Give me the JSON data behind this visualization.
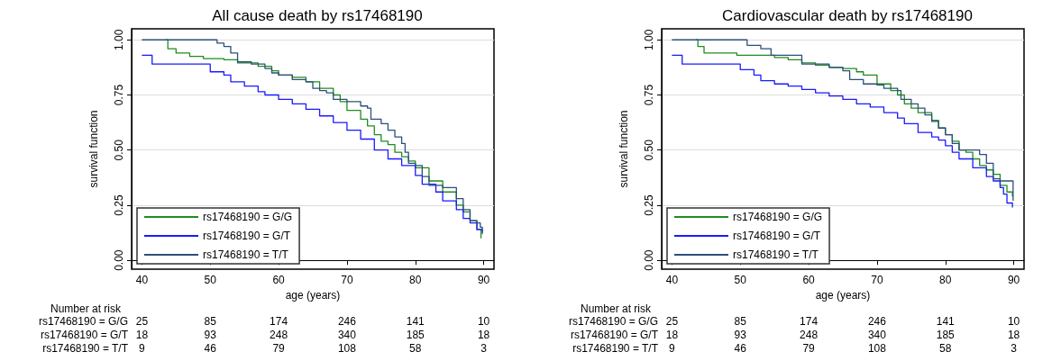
{
  "chart_data": [
    {
      "type": "step",
      "title": "All cause death by rs17468190",
      "xlabel": "age (years)",
      "ylabel": "survival function",
      "xlim": [
        38.5,
        91.5
      ],
      "xticks": [
        40,
        50,
        60,
        70,
        80,
        90
      ],
      "ylim": [
        -0.04,
        1.05
      ],
      "yticks": [
        {
          "value": 0,
          "label": "0.00"
        },
        {
          "value": 0.25,
          "label": "0.25"
        },
        {
          "value": 0.5,
          "label": "0.50"
        },
        {
          "value": 0.75,
          "label": "0.75"
        },
        {
          "value": 1,
          "label": "1.00"
        }
      ],
      "grid": "y",
      "legend": "bottom left",
      "marker": "none",
      "line_style": "solid",
      "series": [
        {
          "name": "rs17468190 = G/G",
          "color": "#1f8c1f",
          "x": [
            43.5,
            43.8,
            45,
            47,
            49,
            52,
            54,
            57,
            59,
            60,
            62,
            64,
            66,
            68,
            69,
            70,
            72,
            73,
            74,
            75,
            76,
            77,
            78,
            79,
            80,
            82,
            84,
            86,
            87,
            88,
            89,
            89.6
          ],
          "values": [
            1.0,
            0.96,
            0.94,
            0.925,
            0.915,
            0.91,
            0.895,
            0.88,
            0.86,
            0.84,
            0.83,
            0.81,
            0.78,
            0.75,
            0.72,
            0.68,
            0.64,
            0.61,
            0.57,
            0.54,
            0.525,
            0.49,
            0.47,
            0.45,
            0.42,
            0.36,
            0.31,
            0.25,
            0.22,
            0.18,
            0.14,
            0.1
          ]
        },
        {
          "name": "rs17468190 = G/T",
          "color": "#1a1aff",
          "x": [
            40,
            41.5,
            49,
            50,
            52,
            53,
            55,
            57,
            58,
            60,
            62,
            64,
            66,
            68,
            70,
            72,
            74,
            76,
            78,
            80,
            81,
            83,
            84,
            86,
            87,
            88,
            89,
            89.8
          ],
          "values": [
            0.93,
            0.89,
            0.89,
            0.855,
            0.84,
            0.81,
            0.79,
            0.765,
            0.75,
            0.73,
            0.71,
            0.685,
            0.655,
            0.625,
            0.59,
            0.55,
            0.5,
            0.46,
            0.43,
            0.385,
            0.345,
            0.31,
            0.27,
            0.23,
            0.19,
            0.17,
            0.14,
            0.12
          ]
        },
        {
          "name": "rs17468190 = T/T",
          "color": "#2b4f7a",
          "x": [
            40,
            50.7,
            51,
            52,
            53,
            54,
            56,
            58,
            59,
            60,
            62,
            64,
            65,
            66,
            67,
            68,
            70,
            72,
            73,
            73.5,
            75,
            76,
            77,
            78,
            78.5,
            79,
            80,
            81,
            82,
            84,
            86,
            87,
            88,
            89,
            89.5,
            89.8
          ],
          "values": [
            1.0,
            1.0,
            0.985,
            0.97,
            0.94,
            0.9,
            0.89,
            0.87,
            0.85,
            0.84,
            0.82,
            0.81,
            0.78,
            0.77,
            0.76,
            0.73,
            0.72,
            0.7,
            0.69,
            0.64,
            0.62,
            0.59,
            0.56,
            0.53,
            0.49,
            0.44,
            0.43,
            0.38,
            0.34,
            0.33,
            0.28,
            0.23,
            0.18,
            0.17,
            0.15,
            0.13
          ]
        }
      ],
      "annotations": [
        "Number at risk",
        "rs17468190 = G/G",
        "25",
        "85",
        "174",
        "246",
        "141",
        "10",
        "rs17468190 = G/T",
        "18",
        "93",
        "248",
        "340",
        "185",
        "18",
        "rs17468190 = T/T",
        "9",
        "46",
        "79",
        "108",
        "58",
        "3"
      ]
    },
    {
      "type": "step",
      "title": "Cardiovascular death by rs17468190",
      "xlabel": "age (years)",
      "ylabel": "survival function",
      "xlim": [
        38.5,
        91.5
      ],
      "xticks": [
        40,
        50,
        60,
        70,
        80,
        90
      ],
      "ylim": [
        -0.04,
        1.05
      ],
      "yticks": [
        {
          "value": 0,
          "label": "0.00"
        },
        {
          "value": 0.25,
          "label": "0.25"
        },
        {
          "value": 0.5,
          "label": "0.50"
        },
        {
          "value": 0.75,
          "label": "0.75"
        },
        {
          "value": 1,
          "label": "1.00"
        }
      ],
      "grid": "y",
      "legend": "bottom left",
      "marker": "none",
      "line_style": "solid",
      "series": [
        {
          "name": "rs17468190 = G/G",
          "color": "#1f8c1f",
          "x": [
            43.5,
            43.8,
            44.7,
            49.5,
            55,
            57,
            59,
            61,
            63,
            65,
            67,
            68,
            70,
            72,
            73,
            74,
            75,
            76,
            78,
            79,
            80,
            81,
            82,
            83,
            84,
            85,
            86,
            87,
            88,
            89,
            89.8
          ],
          "values": [
            1.0,
            0.97,
            0.94,
            0.93,
            0.92,
            0.91,
            0.895,
            0.885,
            0.875,
            0.87,
            0.855,
            0.84,
            0.8,
            0.77,
            0.75,
            0.71,
            0.69,
            0.67,
            0.635,
            0.6,
            0.57,
            0.54,
            0.5,
            0.49,
            0.46,
            0.43,
            0.41,
            0.39,
            0.34,
            0.31,
            0.29
          ]
        },
        {
          "name": "rs17468190 = G/T",
          "color": "#1a1aff",
          "x": [
            40,
            41.5,
            48.5,
            50,
            52,
            53,
            55,
            57,
            59,
            61,
            63,
            65,
            67,
            69,
            71,
            73,
            74,
            76,
            78,
            79,
            80,
            81,
            82,
            84,
            86,
            87,
            88,
            88.5,
            89,
            89.8
          ],
          "values": [
            0.93,
            0.89,
            0.89,
            0.865,
            0.84,
            0.815,
            0.8,
            0.79,
            0.775,
            0.76,
            0.745,
            0.73,
            0.71,
            0.695,
            0.67,
            0.645,
            0.62,
            0.58,
            0.56,
            0.545,
            0.52,
            0.49,
            0.46,
            0.42,
            0.38,
            0.36,
            0.33,
            0.3,
            0.26,
            0.24
          ]
        },
        {
          "name": "rs17468190 = T/T",
          "color": "#2b4f7a",
          "x": [
            40,
            50.5,
            51,
            53,
            54.5,
            58,
            59,
            63,
            65,
            66,
            68,
            70,
            71,
            73,
            73.5,
            75,
            76,
            77,
            78,
            79,
            80,
            81,
            82,
            84.5,
            85,
            86,
            87,
            88,
            89.8,
            89.9
          ],
          "values": [
            1.0,
            1.0,
            0.975,
            0.96,
            0.93,
            0.93,
            0.89,
            0.875,
            0.86,
            0.82,
            0.8,
            0.795,
            0.78,
            0.77,
            0.73,
            0.71,
            0.69,
            0.66,
            0.63,
            0.6,
            0.57,
            0.53,
            0.5,
            0.5,
            0.48,
            0.44,
            0.37,
            0.36,
            0.36,
            0.27
          ]
        }
      ],
      "annotations": [
        "Number at risk",
        "rs17468190 = G/G",
        "25",
        "85",
        "174",
        "246",
        "141",
        "10",
        "rs17468190 = G/T",
        "18",
        "93",
        "248",
        "340",
        "185",
        "18",
        "rs17468190 = T/T",
        "9",
        "46",
        "79",
        "108",
        "58",
        "3"
      ]
    }
  ]
}
